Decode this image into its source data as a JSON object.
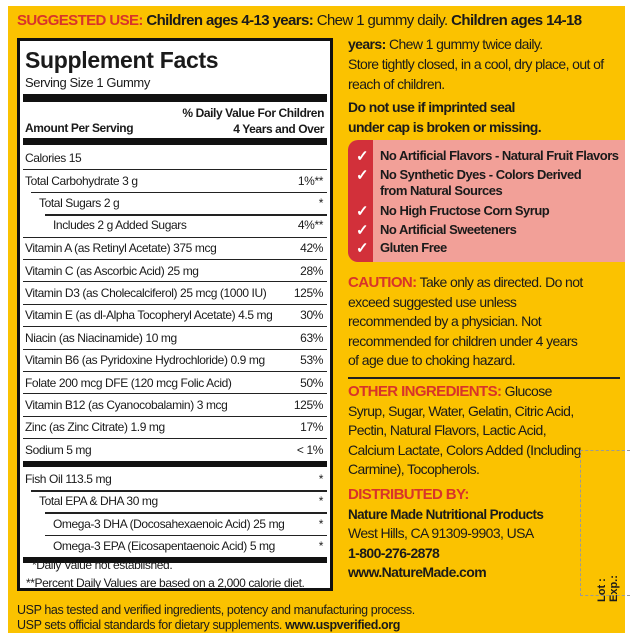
{
  "suggested_use": {
    "label": "SUGGESTED USE:",
    "age1": "Children ages 4-13 years:",
    "dose1": " Chew 1 gummy daily. ",
    "age2": "Children ages 14-18",
    "age2b": "years:",
    "dose2": " Chew 1 gummy twice daily."
  },
  "storage": "Store tightly closed, in a cool, dry place, out of reach of children.",
  "seal_warning": "Do not use if imprinted seal under cap is broken or missing.",
  "facts": {
    "title": "Supplement Facts",
    "serving": "Serving Size 1 Gummy",
    "dv_header": "% Daily Value For Children",
    "dv_header2": "4 Years and Over",
    "amount_header": "Amount Per Serving",
    "rows": [
      {
        "name": "Calories 15",
        "dv": ""
      },
      {
        "name": "Total Carbohydrate  3 g",
        "dv": "1%**"
      },
      {
        "name": "Total Sugars  2 g",
        "dv": "*"
      },
      {
        "name": "Includes  2 g Added Sugars",
        "dv": "4%**"
      },
      {
        "name": "Vitamin A (as Retinyl Acetate)  375 mcg",
        "dv": "42%"
      },
      {
        "name": "Vitamin C (as Ascorbic Acid)  25 mg",
        "dv": "28%"
      },
      {
        "name": "Vitamin D3 (as Cholecalciferol)  25 mcg (1000 IU)",
        "dv": "125%"
      },
      {
        "name": "Vitamin E (as dl-Alpha Tocopheryl Acetate)  4.5 mg",
        "dv": "30%"
      },
      {
        "name": "Niacin (as Niacinamide)  10 mg",
        "dv": "63%"
      },
      {
        "name": "Vitamin B6 (as Pyridoxine Hydrochloride)  0.9 mg",
        "dv": "53%"
      },
      {
        "name": "Folate 200 mcg DFE  (120 mcg Folic Acid)",
        "dv": "50%"
      },
      {
        "name": "Vitamin B12 (as Cyanocobalamin)  3 mcg",
        "dv": "125%"
      },
      {
        "name": "Zinc (as Zinc Citrate)  1.9 mg",
        "dv": "17%"
      },
      {
        "name": "Sodium  5 mg",
        "dv": "< 1%"
      },
      {
        "name": "Fish Oil  113.5 mg",
        "dv": "*"
      },
      {
        "name": "Total EPA & DHA  30 mg",
        "dv": "*"
      },
      {
        "name": "Omega-3 DHA (Docosahexaenoic Acid)  25 mg",
        "dv": "*"
      },
      {
        "name": "Omega-3 EPA (Eicosapentaenoic Acid)  5 mg",
        "dv": "*"
      }
    ],
    "footnote1": "*Daily Value not established.",
    "footnote2": "**Percent Daily Values are based on a 2,000 calorie diet."
  },
  "claims": [
    "No Artificial Flavors - Natural Fruit Flavors",
    "No Synthetic Dyes - Colors Derived",
    "from Natural Sources",
    "No High Fructose Corn Syrup",
    "No Artificial Sweeteners",
    "Gluten Free"
  ],
  "check_icon": "check-icon",
  "caution": {
    "label": "CAUTION:",
    "text": " Take only as directed. Do not exceed suggested use unless recommended by a physician. Not recommended for children under 4 years of age due to choking hazard."
  },
  "other_ingredients": {
    "label": "OTHER INGREDIENTS:",
    "text": " Glucose Syrup, Sugar, Water, Gelatin, Citric Acid, Pectin, Natural Flavors, Lactic Acid, Calcium Lactate, Colors Added (Including Carmine), Tocopherols."
  },
  "distributor": {
    "label": "DISTRIBUTED BY:",
    "name": "Nature Made Nutritional Products",
    "address": "West Hills, CA 91309-9903, USA",
    "phone": "1-800-276-2878",
    "website": "www.NatureMade.com"
  },
  "usp": {
    "line1": "USP has tested and verified ingredients, potency and manufacturing process.",
    "line2": "USP sets official standards for dietary supplements. ",
    "link": "www.uspverified.org"
  },
  "lot_label": "Lot :",
  "exp_label": "Exp.:",
  "colors": {
    "background": "#FBC200",
    "accent_red": "#D8342A",
    "claims_bg": "#F2A098",
    "claims_strip": "#D2303A"
  }
}
